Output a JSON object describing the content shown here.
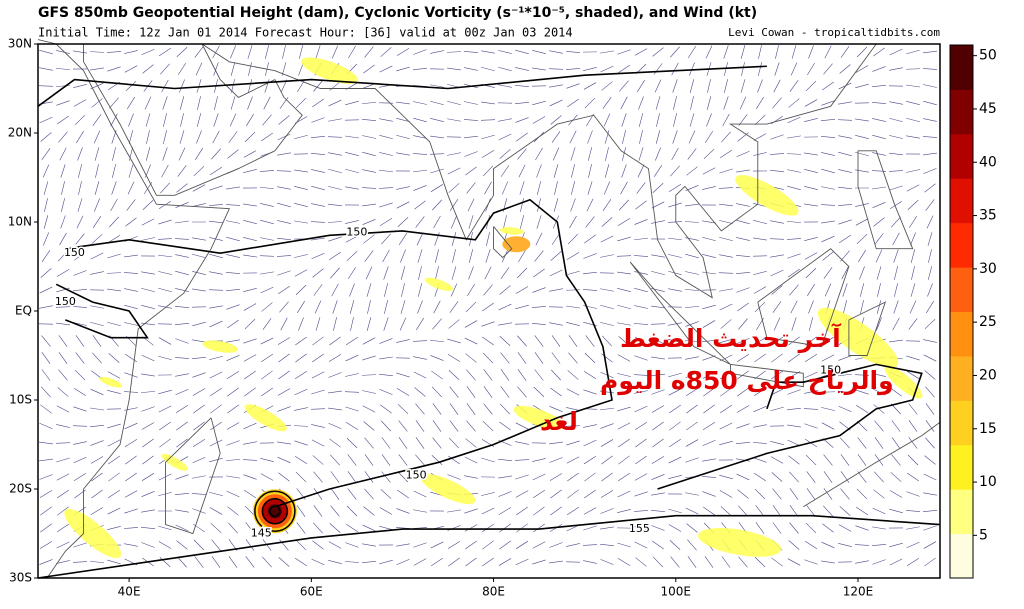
{
  "chart_data": {
    "type": "map",
    "title": "GFS 850mb Geopotential Height (dam), Cyclonic Vorticity (s⁻¹*10⁻⁵, shaded), and Wind (kt)",
    "subtitle": "Initial Time: 12z Jan 01 2014 Forecast Hour: [36] valid at 00z Jan 03 2014",
    "credit": "Levi Cowan - tropicaltidbits.com",
    "xlim": [
      30,
      129
    ],
    "ylim": [
      -30,
      30
    ],
    "xticks": [
      {
        "value": 40,
        "label": "40E"
      },
      {
        "value": 60,
        "label": "60E"
      },
      {
        "value": 80,
        "label": "80E"
      },
      {
        "value": 100,
        "label": "100E"
      },
      {
        "value": 120,
        "label": "120E"
      }
    ],
    "yticks": [
      {
        "value": 30,
        "label": "30N"
      },
      {
        "value": 20,
        "label": "20N"
      },
      {
        "value": 10,
        "label": "10N"
      },
      {
        "value": 0,
        "label": "EQ"
      },
      {
        "value": -10,
        "label": "10S"
      },
      {
        "value": -20,
        "label": "20S"
      },
      {
        "value": -30,
        "label": "30S"
      }
    ],
    "colorbar": {
      "lim": [
        1,
        51
      ],
      "ticks": [
        5,
        10,
        15,
        20,
        25,
        30,
        35,
        40,
        45,
        50
      ],
      "colors": [
        "#fffde0",
        "#ffff80",
        "#fff020",
        "#ffd020",
        "#ffb020",
        "#ff9010",
        "#ff6010",
        "#ff2a00",
        "#e01000",
        "#b00000",
        "#800000",
        "#500000"
      ]
    },
    "contour_labels": [
      {
        "value": 150,
        "lon": 34,
        "lat": 6.5
      },
      {
        "value": 150,
        "lon": 33,
        "lat": 1
      },
      {
        "value": 150,
        "lon": 65,
        "lat": 8.8
      },
      {
        "value": 150,
        "lon": 117,
        "lat": -6.7
      },
      {
        "value": 150,
        "lon": 71.5,
        "lat": -18.5
      },
      {
        "value": 155,
        "lon": 96,
        "lat": -24.5
      },
      {
        "value": 145,
        "lon": 54.5,
        "lat": -25
      }
    ],
    "annotation": [
      "آخر تحديث الضغط",
      "والرياح على 850ه اليوم",
      "لغد"
    ]
  }
}
